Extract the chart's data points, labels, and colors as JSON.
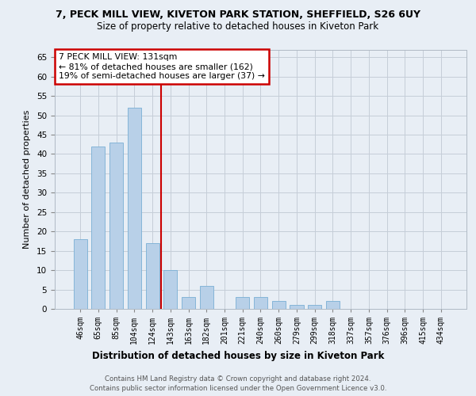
{
  "title_line1": "7, PECK MILL VIEW, KIVETON PARK STATION, SHEFFIELD, S26 6UY",
  "title_line2": "Size of property relative to detached houses in Kiveton Park",
  "xlabel": "Distribution of detached houses by size in Kiveton Park",
  "ylabel": "Number of detached properties",
  "categories": [
    "46sqm",
    "65sqm",
    "85sqm",
    "104sqm",
    "124sqm",
    "143sqm",
    "163sqm",
    "182sqm",
    "201sqm",
    "221sqm",
    "240sqm",
    "260sqm",
    "279sqm",
    "299sqm",
    "318sqm",
    "337sqm",
    "357sqm",
    "376sqm",
    "396sqm",
    "415sqm",
    "434sqm"
  ],
  "values": [
    18,
    42,
    43,
    52,
    17,
    10,
    3,
    6,
    0,
    3,
    3,
    2,
    1,
    1,
    2,
    0,
    0,
    0,
    0,
    0,
    0
  ],
  "bar_color": "#b8d0e8",
  "bar_edge_color": "#7aafd4",
  "vline_x": 4.5,
  "vline_color": "#cc0000",
  "ylim": [
    0,
    67
  ],
  "yticks": [
    0,
    5,
    10,
    15,
    20,
    25,
    30,
    35,
    40,
    45,
    50,
    55,
    60,
    65
  ],
  "annotation_text": "7 PECK MILL VIEW: 131sqm\n← 81% of detached houses are smaller (162)\n19% of semi-detached houses are larger (37) →",
  "annotation_box_color": "#ffffff",
  "annotation_box_edge_color": "#cc0000",
  "footer_line1": "Contains HM Land Registry data © Crown copyright and database right 2024.",
  "footer_line2": "Contains public sector information licensed under the Open Government Licence v3.0.",
  "bg_color": "#e8eef5",
  "plot_bg_color": "#e8eef5"
}
